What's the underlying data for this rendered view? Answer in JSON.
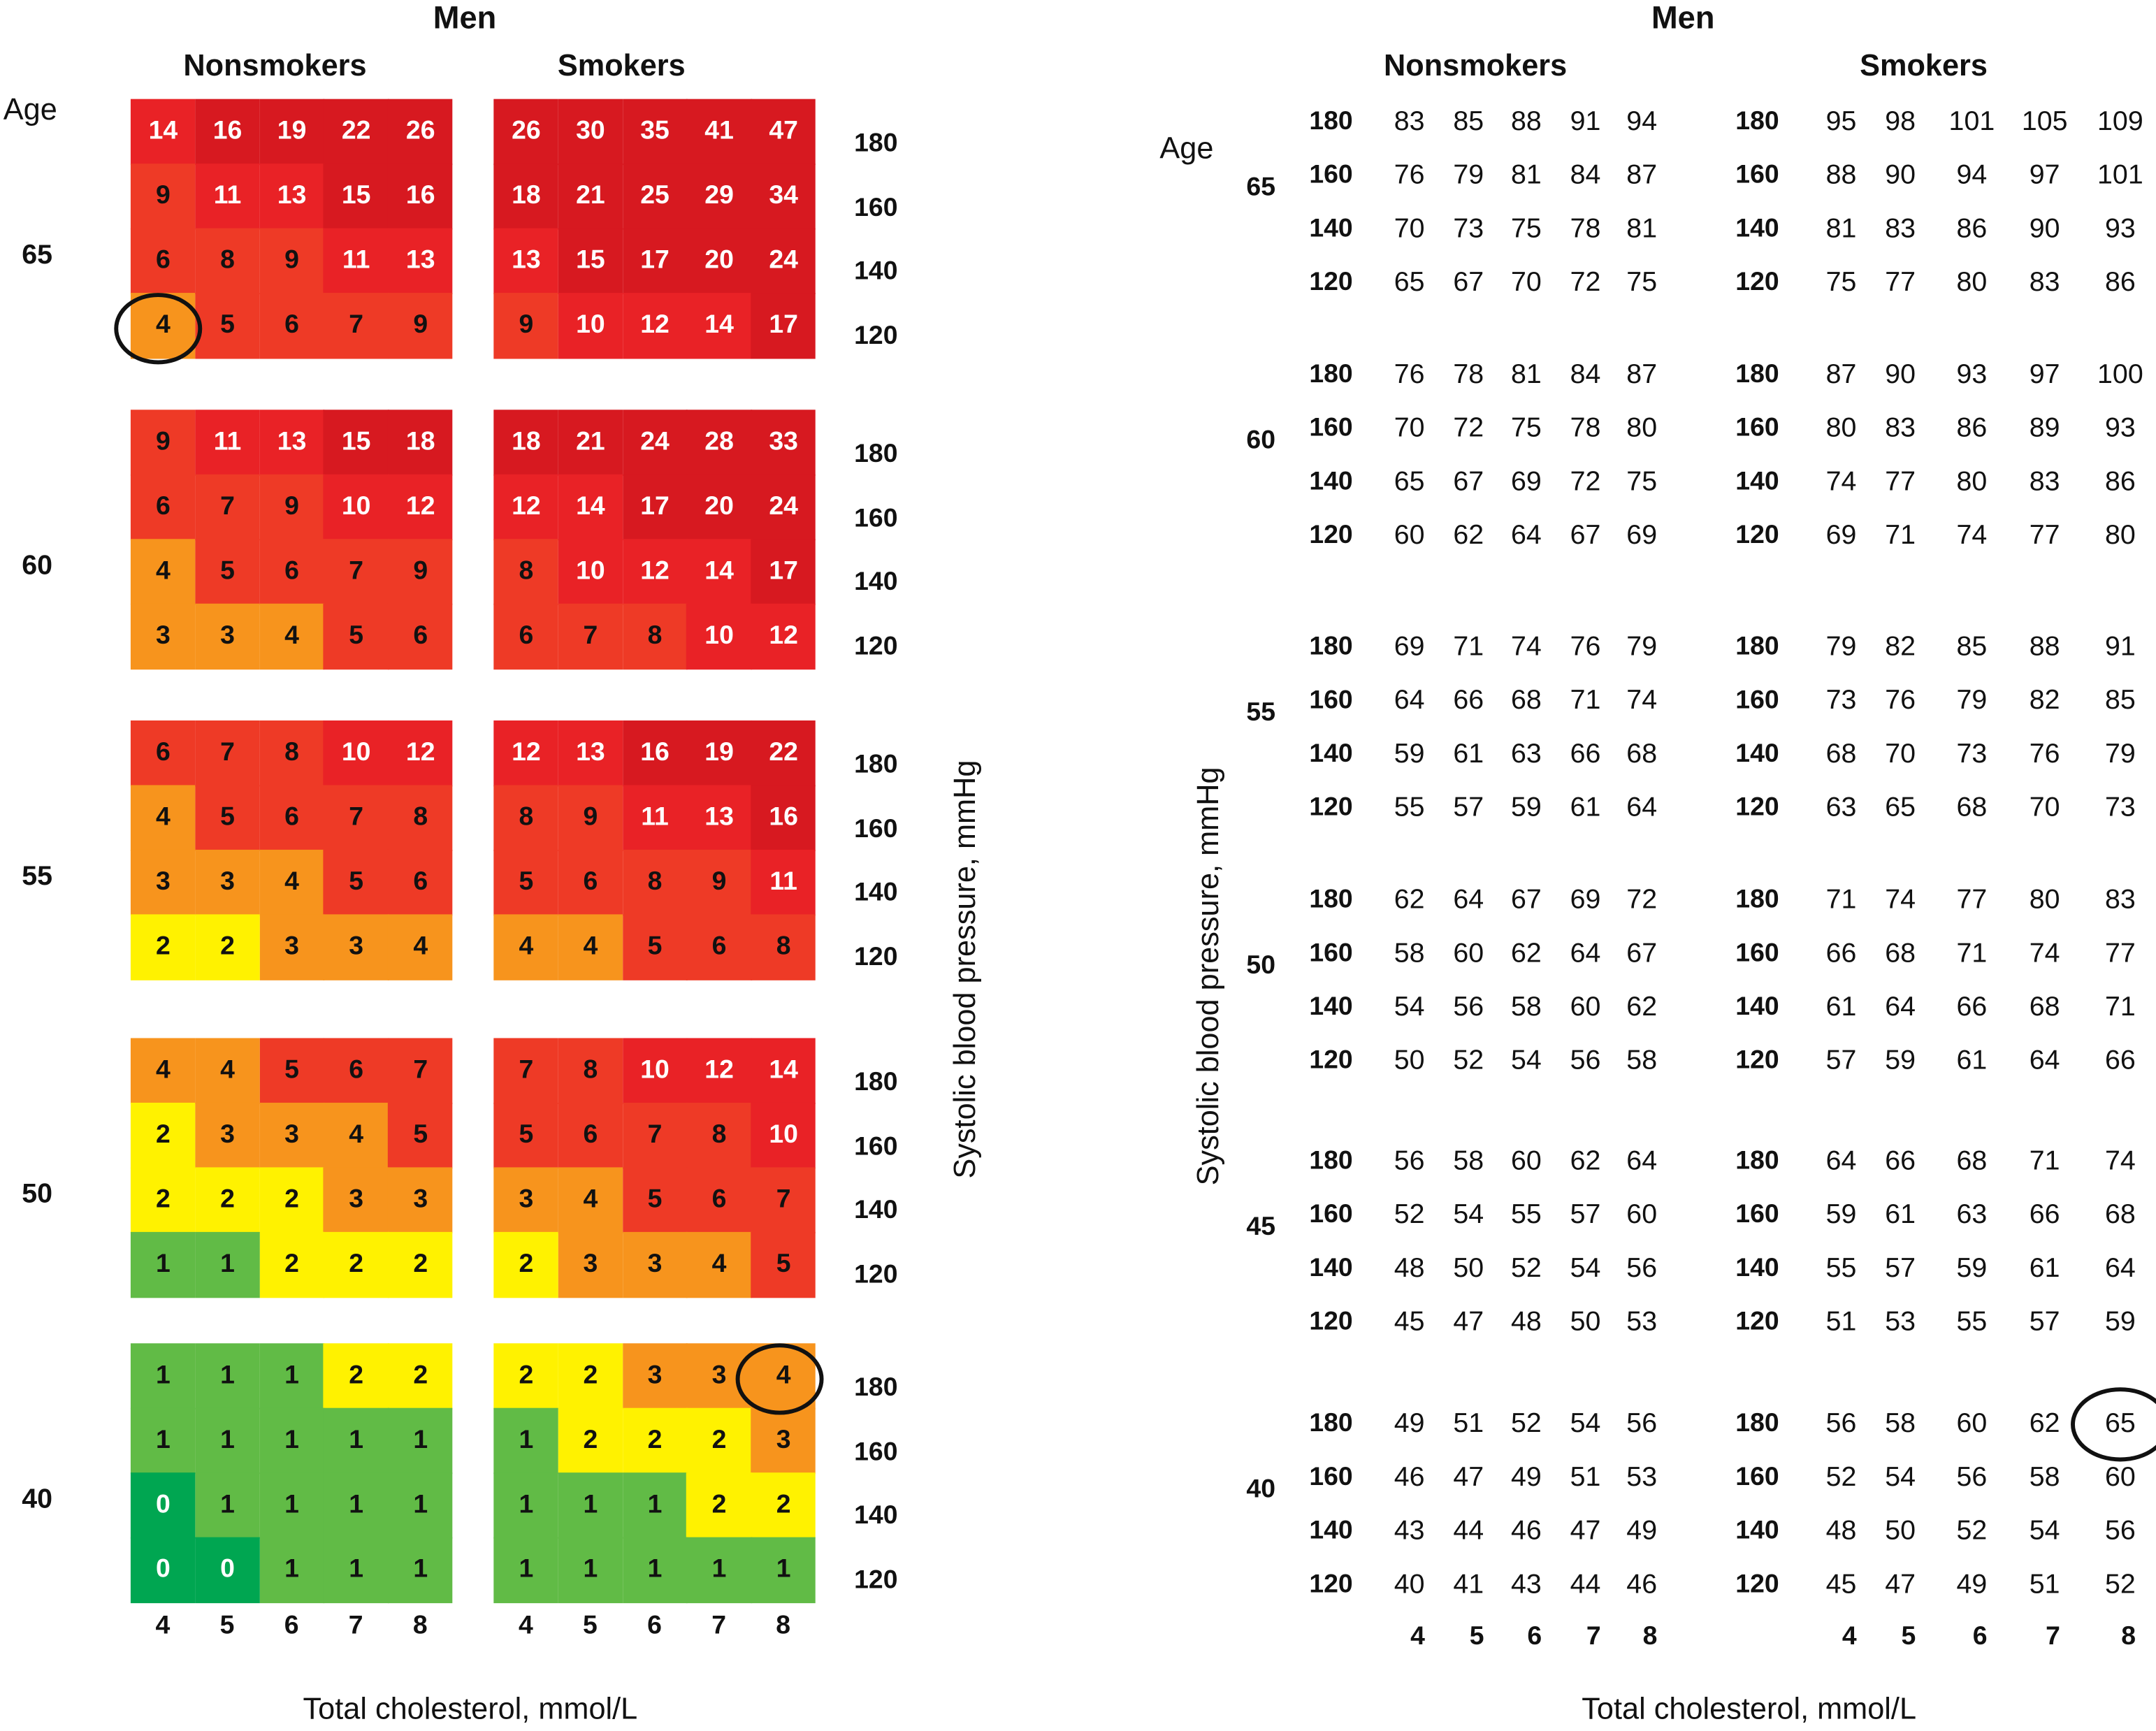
{
  "chart_data": [
    {
      "type": "heatmap",
      "title": "Men",
      "groups": [
        "Nonsmokers",
        "Smokers"
      ],
      "age_label": "Age",
      "ages": [
        65,
        60,
        55,
        50,
        40
      ],
      "sbp": [
        180,
        160,
        140,
        120
      ],
      "cholesterol": [
        4,
        5,
        6,
        7,
        8
      ],
      "xlabel": "Total cholesterol, mmol/L",
      "ylabel": "Systolic blood pressure, mmHg",
      "values": {
        "Nonsmokers": {
          "65": [
            [
              14,
              16,
              19,
              22,
              26
            ],
            [
              9,
              11,
              13,
              15,
              16
            ],
            [
              6,
              8,
              9,
              11,
              13
            ],
            [
              4,
              5,
              6,
              7,
              9
            ]
          ],
          "60": [
            [
              9,
              11,
              13,
              15,
              18
            ],
            [
              6,
              7,
              9,
              10,
              12
            ],
            [
              4,
              5,
              6,
              7,
              9
            ],
            [
              3,
              3,
              4,
              5,
              6
            ]
          ],
          "55": [
            [
              6,
              7,
              8,
              10,
              12
            ],
            [
              4,
              5,
              6,
              7,
              8
            ],
            [
              3,
              3,
              4,
              5,
              6
            ],
            [
              2,
              2,
              3,
              3,
              4
            ]
          ],
          "50": [
            [
              4,
              4,
              5,
              6,
              7
            ],
            [
              2,
              3,
              3,
              4,
              5
            ],
            [
              2,
              2,
              2,
              3,
              3
            ],
            [
              1,
              1,
              2,
              2,
              2
            ]
          ],
          "40": [
            [
              1,
              1,
              1,
              2,
              2
            ],
            [
              1,
              1,
              1,
              1,
              1
            ],
            [
              0,
              1,
              1,
              1,
              1
            ],
            [
              0,
              0,
              1,
              1,
              1
            ]
          ]
        },
        "Smokers": {
          "65": [
            [
              26,
              30,
              35,
              41,
              47
            ],
            [
              18,
              21,
              25,
              29,
              34
            ],
            [
              13,
              15,
              17,
              20,
              24
            ],
            [
              9,
              10,
              12,
              14,
              17
            ]
          ],
          "60": [
            [
              18,
              21,
              24,
              28,
              33
            ],
            [
              12,
              14,
              17,
              20,
              24
            ],
            [
              8,
              10,
              12,
              14,
              17
            ],
            [
              6,
              7,
              8,
              10,
              12
            ]
          ],
          "55": [
            [
              12,
              13,
              16,
              19,
              22
            ],
            [
              8,
              9,
              11,
              13,
              16
            ],
            [
              5,
              6,
              8,
              9,
              11
            ],
            [
              4,
              4,
              5,
              6,
              8
            ]
          ],
          "50": [
            [
              7,
              8,
              10,
              12,
              14
            ],
            [
              5,
              6,
              7,
              8,
              10
            ],
            [
              3,
              4,
              5,
              6,
              7
            ],
            [
              2,
              3,
              3,
              4,
              5
            ]
          ],
          "40": [
            [
              2,
              2,
              3,
              3,
              4
            ],
            [
              1,
              2,
              2,
              2,
              3
            ],
            [
              1,
              1,
              1,
              2,
              2
            ],
            [
              1,
              1,
              1,
              1,
              1
            ]
          ]
        }
      },
      "highlighted": [
        {
          "group": "Nonsmokers",
          "age": 65,
          "sbp": 120,
          "cholesterol": 4
        },
        {
          "group": "Smokers",
          "age": 40,
          "sbp": 180,
          "cholesterol": 8
        }
      ],
      "colors": {
        "dark_green": "#00a651",
        "green": "#61bb46",
        "yellow": "#fff200",
        "orange": "#f7941d",
        "red_orange": "#ee3a26",
        "red": "#e92226",
        "dark_red": "#d71920"
      }
    },
    {
      "type": "table",
      "title": "Men",
      "groups": [
        "Nonsmokers",
        "Smokers"
      ],
      "age_label": "Age",
      "ages": [
        65,
        60,
        55,
        50,
        45,
        40
      ],
      "sbp": [
        180,
        160,
        140,
        120
      ],
      "cholesterol": [
        4,
        5,
        6,
        7,
        8
      ],
      "xlabel": "Total cholesterol, mmol/L",
      "ylabel": "Systolic blood pressure, mmHg",
      "values": {
        "Nonsmokers": {
          "65": [
            [
              83,
              85,
              88,
              91,
              94
            ],
            [
              76,
              79,
              81,
              84,
              87
            ],
            [
              70,
              73,
              75,
              78,
              81
            ],
            [
              65,
              67,
              70,
              72,
              75
            ]
          ],
          "60": [
            [
              76,
              78,
              81,
              84,
              87
            ],
            [
              70,
              72,
              75,
              78,
              80
            ],
            [
              65,
              67,
              69,
              72,
              75
            ],
            [
              60,
              62,
              64,
              67,
              69
            ]
          ],
          "55": [
            [
              69,
              71,
              74,
              76,
              79
            ],
            [
              64,
              66,
              68,
              71,
              74
            ],
            [
              59,
              61,
              63,
              66,
              68
            ],
            [
              55,
              57,
              59,
              61,
              64
            ]
          ],
          "50": [
            [
              62,
              64,
              67,
              69,
              72
            ],
            [
              58,
              60,
              62,
              64,
              67
            ],
            [
              54,
              56,
              58,
              60,
              62
            ],
            [
              50,
              52,
              54,
              56,
              58
            ]
          ],
          "45": [
            [
              56,
              58,
              60,
              62,
              64
            ],
            [
              52,
              54,
              55,
              57,
              60
            ],
            [
              48,
              50,
              52,
              54,
              56
            ],
            [
              45,
              47,
              48,
              50,
              53
            ]
          ],
          "40": [
            [
              49,
              51,
              52,
              54,
              56
            ],
            [
              46,
              47,
              49,
              51,
              53
            ],
            [
              43,
              44,
              46,
              47,
              49
            ],
            [
              40,
              41,
              43,
              44,
              46
            ]
          ]
        },
        "Smokers": {
          "65": [
            [
              95,
              98,
              101,
              105,
              109
            ],
            [
              88,
              90,
              94,
              97,
              101
            ],
            [
              81,
              83,
              86,
              90,
              93
            ],
            [
              75,
              77,
              80,
              83,
              86
            ]
          ],
          "60": [
            [
              87,
              90,
              93,
              97,
              100
            ],
            [
              80,
              83,
              86,
              89,
              93
            ],
            [
              74,
              77,
              80,
              83,
              86
            ],
            [
              69,
              71,
              74,
              77,
              80
            ]
          ],
          "55": [
            [
              79,
              82,
              85,
              88,
              91
            ],
            [
              73,
              76,
              79,
              82,
              85
            ],
            [
              68,
              70,
              73,
              76,
              79
            ],
            [
              63,
              65,
              68,
              70,
              73
            ]
          ],
          "50": [
            [
              71,
              74,
              77,
              80,
              83
            ],
            [
              66,
              68,
              71,
              74,
              77
            ],
            [
              61,
              64,
              66,
              68,
              71
            ],
            [
              57,
              59,
              61,
              64,
              66
            ]
          ],
          "45": [
            [
              64,
              66,
              68,
              71,
              74
            ],
            [
              59,
              61,
              63,
              66,
              68
            ],
            [
              55,
              57,
              59,
              61,
              64
            ],
            [
              51,
              53,
              55,
              57,
              59
            ]
          ],
          "40": [
            [
              56,
              58,
              60,
              62,
              65
            ],
            [
              52,
              54,
              56,
              58,
              60
            ],
            [
              48,
              50,
              52,
              54,
              56
            ],
            [
              45,
              47,
              49,
              51,
              52
            ]
          ]
        }
      },
      "highlighted": [
        {
          "group": "Smokers",
          "age": 40,
          "sbp": 180,
          "cholesterol": 8
        }
      ]
    }
  ]
}
